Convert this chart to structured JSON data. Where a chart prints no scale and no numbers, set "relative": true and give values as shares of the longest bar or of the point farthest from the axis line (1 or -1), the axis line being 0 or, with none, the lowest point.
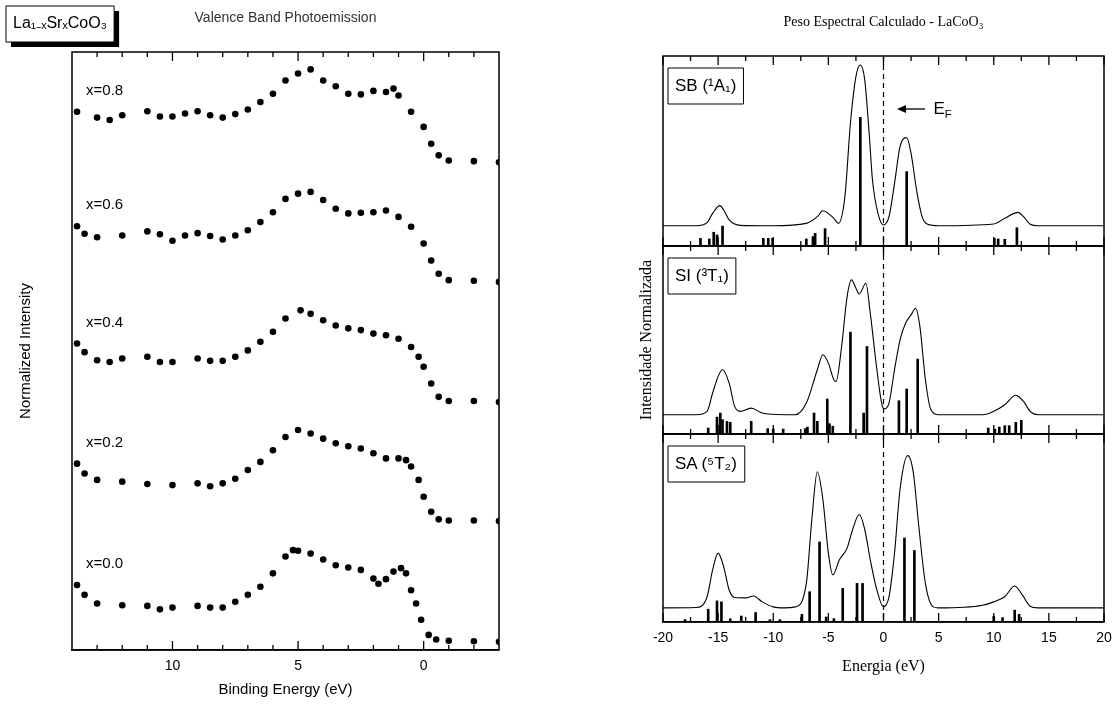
{
  "chart_data": [
    {
      "type": "scatter",
      "title": "Valence Band Photoemission",
      "xlabel": "Binding Energy (eV)",
      "ylabel": "Normalized Intensity",
      "relative": true,
      "marker": "circle",
      "annotations": [
        "La₁₋ₓSrₓCoO₃"
      ],
      "xlim": [
        14,
        -3
      ],
      "xticks": [
        {
          "value": 13,
          "label": null
        },
        {
          "value": 12,
          "label": null
        },
        {
          "value": 11,
          "label": null
        },
        10,
        {
          "value": 9,
          "label": null
        },
        {
          "value": 8,
          "label": null
        },
        {
          "value": 7,
          "label": null
        },
        {
          "value": 6,
          "label": null
        },
        5,
        {
          "value": 4,
          "label": null
        },
        {
          "value": 3,
          "label": null
        },
        {
          "value": 2,
          "label": null
        },
        {
          "value": 1,
          "label": null
        },
        0,
        {
          "value": -1,
          "label": null
        },
        {
          "value": -2,
          "label": null
        }
      ],
      "series": [
        {
          "name": "x=0.8",
          "color": "#000000",
          "x": [
            13.8,
            13,
            12.5,
            12,
            11,
            10.5,
            10,
            9.5,
            9,
            8.5,
            8,
            7.5,
            7,
            6.5,
            6,
            5.5,
            5,
            4.5,
            4,
            3.5,
            3,
            2.5,
            2,
            1.5,
            1.2,
            1,
            0.5,
            0,
            -0.3,
            -0.6,
            -1,
            -2,
            -3
          ],
          "values": [
            0.927,
            0.917,
            0.913,
            0.921,
            0.928,
            0.919,
            0.919,
            0.924,
            0.928,
            0.921,
            0.917,
            0.923,
            0.931,
            0.944,
            0.958,
            0.981,
            0.993,
            1,
            0.981,
            0.971,
            0.958,
            0.957,
            0.963,
            0.961,
            0.967,
            0.955,
            0.927,
            0.901,
            0.872,
            0.852,
            0.843,
            0.842,
            0.84
          ]
        },
        {
          "name": "x=0.6",
          "color": "#000000",
          "x": [
            13.8,
            13.5,
            13,
            12,
            11,
            10.5,
            10,
            9.5,
            9,
            8.5,
            8,
            7.5,
            7,
            6.5,
            6,
            5.5,
            5,
            4.5,
            4,
            3.5,
            3,
            2.5,
            2,
            1.5,
            1,
            0.5,
            0,
            -0.3,
            -0.6,
            -1,
            -2,
            -3
          ],
          "values": [
            0.73,
            0.717,
            0.711,
            0.714,
            0.721,
            0.716,
            0.705,
            0.714,
            0.718,
            0.713,
            0.707,
            0.714,
            0.723,
            0.737,
            0.754,
            0.777,
            0.786,
            0.789,
            0.775,
            0.76,
            0.752,
            0.753,
            0.754,
            0.757,
            0.746,
            0.729,
            0.7,
            0.671,
            0.648,
            0.637,
            0.636,
            0.634
          ]
        },
        {
          "name": "x=0.4",
          "color": "#000000",
          "x": [
            13.8,
            13.5,
            13,
            12.5,
            12,
            11,
            10.5,
            10,
            9,
            8.5,
            8,
            7.5,
            7,
            6.5,
            6,
            5.5,
            4.9,
            4.5,
            4,
            3.5,
            3,
            2.5,
            2,
            1.5,
            1,
            0.5,
            0.2,
            0,
            -0.3,
            -0.6,
            -1,
            -2,
            -3
          ],
          "values": [
            0.528,
            0.513,
            0.499,
            0.496,
            0.502,
            0.505,
            0.496,
            0.496,
            0.502,
            0.498,
            0.498,
            0.505,
            0.516,
            0.531,
            0.548,
            0.571,
            0.585,
            0.579,
            0.568,
            0.559,
            0.554,
            0.551,
            0.545,
            0.542,
            0.536,
            0.522,
            0.505,
            0.488,
            0.459,
            0.436,
            0.429,
            0.429,
            0.427
          ]
        },
        {
          "name": "x=0.2",
          "color": "#000000",
          "x": [
            13.8,
            13.5,
            13,
            12,
            11,
            10,
            9,
            8.5,
            8,
            7.5,
            7,
            6.5,
            6,
            5.5,
            5,
            4.5,
            4,
            3.5,
            3,
            2.5,
            2,
            1.5,
            1,
            0.7,
            0.5,
            0.2,
            0,
            -0.3,
            -0.6,
            -1,
            -2,
            -3
          ],
          "values": [
            0.321,
            0.304,
            0.293,
            0.29,
            0.286,
            0.284,
            0.287,
            0.282,
            0.287,
            0.295,
            0.31,
            0.324,
            0.344,
            0.367,
            0.379,
            0.373,
            0.364,
            0.356,
            0.351,
            0.347,
            0.339,
            0.33,
            0.33,
            0.327,
            0.316,
            0.293,
            0.264,
            0.238,
            0.225,
            0.223,
            0.223,
            0.222
          ]
        },
        {
          "name": "x=0.0",
          "color": "#000000",
          "x": [
            13.8,
            13.5,
            13,
            12,
            11,
            10.5,
            10,
            9,
            8.5,
            8,
            7.5,
            7,
            6.5,
            6,
            5.5,
            5.2,
            5,
            4.5,
            4,
            3.5,
            3,
            2.5,
            2,
            1.8,
            1.5,
            1.2,
            0.9,
            0.7,
            0.5,
            0.3,
            0.1,
            -0.2,
            -0.5,
            -1,
            -2,
            -3
          ],
          "values": [
            0.112,
            0.095,
            0.08,
            0.077,
            0.076,
            0.07,
            0.073,
            0.076,
            0.073,
            0.073,
            0.083,
            0.095,
            0.109,
            0.132,
            0.161,
            0.172,
            0.171,
            0.166,
            0.156,
            0.146,
            0.142,
            0.138,
            0.123,
            0.114,
            0.122,
            0.135,
            0.141,
            0.132,
            0.103,
            0.08,
            0.052,
            0.026,
            0.018,
            0.016,
            0.015,
            0.014
          ]
        }
      ]
    },
    {
      "type": "line",
      "title": "Peso Espectral Calculado - LaCoO₃",
      "relative": true,
      "marker": "none",
      "tick_labels": false,
      "annotations": [
        "SB (¹A₁)"
      ],
      "ref_lines": [
        {
          "axis": "x",
          "value": 0,
          "label": "E$_{F}$",
          "line_style": "dashed",
          "color": "#000000"
        }
      ],
      "xlim": [
        -20,
        20
      ],
      "xticks": [
        -20,
        {
          "value": -17.5,
          "label": null
        },
        -15,
        {
          "value": -12.5,
          "label": null
        },
        -10,
        {
          "value": -7.5,
          "label": null
        },
        -5,
        {
          "value": -2.5,
          "label": null
        },
        0,
        {
          "value": 2.5,
          "label": null
        },
        5,
        {
          "value": 7.5,
          "label": null
        },
        10,
        {
          "value": 12.5,
          "label": null
        },
        15,
        {
          "value": 17.5,
          "label": null
        },
        20
      ],
      "series": [
        {
          "type": "line",
          "color": "#000000",
          "x": [
            -20,
            -17,
            -16,
            -15.5,
            -14.85,
            -14.5,
            -14,
            -13,
            -10,
            -7,
            -6,
            -5.5,
            -4.5,
            -4.1,
            -3.5,
            -3,
            -2.5,
            -2.1,
            -1.7,
            -1.3,
            -1,
            -0.5,
            0,
            0.5,
            1,
            1.5,
            2.1,
            2.5,
            3,
            3.5,
            4,
            5,
            10,
            11,
            12.2,
            12.7,
            13.3,
            14,
            20
          ],
          "values": [
            0.112,
            0.112,
            0.129,
            0.18,
            0.223,
            0.199,
            0.144,
            0.114,
            0.112,
            0.125,
            0.162,
            0.195,
            0.153,
            0.125,
            0.273,
            0.678,
            0.936,
            1,
            0.917,
            0.622,
            0.365,
            0.18,
            0.116,
            0.162,
            0.346,
            0.549,
            0.599,
            0.512,
            0.309,
            0.162,
            0.12,
            0.112,
            0.122,
            0.153,
            0.186,
            0.162,
            0.12,
            0.112,
            0.112
          ]
        },
        {
          "type": "bar",
          "color": "#000000",
          "x": [
            -16.6,
            -15.8,
            -15.4,
            -15.1,
            -14.6,
            -10.9,
            -10.45,
            -10.06,
            -7,
            -6.4,
            -6.2,
            -5.3,
            -2.1,
            2.1,
            10.05,
            10.4,
            11,
            12.1
          ],
          "values": [
            0.042,
            0.039,
            0.076,
            0.061,
            0.11,
            0.042,
            0.042,
            0.042,
            0.039,
            0.052,
            0.07,
            0.096,
            0.711,
            0.411,
            0.042,
            0.039,
            0.037,
            0.101
          ]
        }
      ]
    },
    {
      "type": "line",
      "ylabel": "Intensidade Normalizada",
      "relative": true,
      "marker": "none",
      "tick_labels": false,
      "annotations": [
        "SI (³T₁)"
      ],
      "ref_lines": [
        {
          "axis": "x",
          "value": 0,
          "line_style": "dashed",
          "color": "#000000"
        }
      ],
      "xlim": [
        -20,
        20
      ],
      "xticks": [
        -20,
        {
          "value": -17.5,
          "label": null
        },
        -15,
        {
          "value": -12.5,
          "label": null
        },
        -10,
        {
          "value": -7.5,
          "label": null
        },
        -5,
        {
          "value": -2.5,
          "label": null
        },
        0,
        {
          "value": 2.5,
          "label": null
        },
        5,
        {
          "value": 7.5,
          "label": null
        },
        10,
        {
          "value": 12.5,
          "label": null
        },
        15,
        {
          "value": 17.5,
          "label": null
        },
        20
      ],
      "series": [
        {
          "type": "line",
          "color": "#000000",
          "x": [
            -20,
            -17,
            -16,
            -15.5,
            -15,
            -14.6,
            -14,
            -13.5,
            -13,
            -12,
            -11,
            -9,
            -8,
            -7,
            -6,
            -5.5,
            -5,
            -4.5,
            -4.3,
            -3.8,
            -3.3,
            -2.9,
            -2.5,
            -2.2,
            -1.6,
            -1.2,
            -0.6,
            -0.1,
            0.1,
            0.5,
            1,
            1.5,
            2,
            2.5,
            2.9,
            3.3,
            3.8,
            4.3,
            5,
            9,
            10,
            11,
            12,
            12.7,
            13.3,
            14,
            20
          ],
          "values": [
            0.125,
            0.125,
            0.147,
            0.266,
            0.374,
            0.417,
            0.33,
            0.179,
            0.147,
            0.168,
            0.136,
            0.125,
            0.125,
            0.201,
            0.417,
            0.514,
            0.46,
            0.352,
            0.341,
            0.568,
            0.892,
            1,
            0.946,
            0.909,
            0.978,
            0.784,
            0.417,
            0.179,
            0.164,
            0.201,
            0.417,
            0.611,
            0.719,
            0.773,
            0.816,
            0.698,
            0.352,
            0.158,
            0.125,
            0.125,
            0.147,
            0.19,
            0.251,
            0.212,
            0.147,
            0.125,
            0.125
          ]
        },
        {
          "type": "bar",
          "color": "#000000",
          "x": [
            -15.9,
            -15.1,
            -14.8,
            -14.6,
            -14.2,
            -13.9,
            -12,
            -10.5,
            -10,
            -9.1,
            -7.1,
            -6.9,
            -6.3,
            -6,
            -5.1,
            -4.9,
            -4.6,
            -3,
            -1.8,
            -1.5,
            1.4,
            2.1,
            3.1,
            9.5,
            10.1,
            10.5,
            11,
            11.4,
            12,
            12.5
          ],
          "values": [
            0.039,
            0.11,
            0.136,
            0.093,
            0.082,
            0.076,
            0.082,
            0.035,
            0.032,
            0.032,
            0.035,
            0.045,
            0.136,
            0.082,
            0.227,
            0.067,
            0.05,
            0.661,
            0.136,
            0.568,
            0.216,
            0.292,
            0.486,
            0.039,
            0.032,
            0.045,
            0.054,
            0.054,
            0.076,
            0.089
          ]
        }
      ]
    },
    {
      "type": "line",
      "xlabel": "Energia (eV)",
      "relative": true,
      "marker": "none",
      "annotations": [
        "SA (⁵T₂)"
      ],
      "ref_lines": [
        {
          "axis": "x",
          "value": 0,
          "line_style": "dashed",
          "color": "#000000"
        }
      ],
      "xlim": [
        -20,
        20
      ],
      "xticks": [
        -20,
        {
          "value": -17.5,
          "label": null
        },
        -15,
        {
          "value": -12.5,
          "label": null
        },
        -10,
        {
          "value": -7.5,
          "label": null
        },
        -5,
        {
          "value": -2.5,
          "label": null
        },
        0,
        {
          "value": 2.5,
          "label": null
        },
        5,
        {
          "value": 7.5,
          "label": null
        },
        10,
        {
          "value": 12.5,
          "label": null
        },
        15,
        {
          "value": 17.5,
          "label": null
        },
        20
      ],
      "series": [
        {
          "type": "line",
          "color": "#000000",
          "x": [
            -20,
            -17,
            -16,
            -15.5,
            -15,
            -14.5,
            -14,
            -13.5,
            -12.5,
            -11.8,
            -11,
            -10,
            -9,
            -8,
            -7,
            -6.5,
            -6,
            -5.5,
            -5,
            -4.6,
            -4,
            -3.3,
            -2.8,
            -2.2,
            -1.7,
            -1.2,
            -0.6,
            0,
            0.5,
            1,
            1.5,
            2.2,
            2.7,
            3.2,
            3.8,
            4.5,
            5,
            9,
            10,
            11,
            11.9,
            12.6,
            13.3,
            14,
            20
          ],
          "values": [
            0.085,
            0.087,
            0.152,
            0.313,
            0.414,
            0.333,
            0.192,
            0.147,
            0.145,
            0.156,
            0.121,
            0.091,
            0.085,
            0.091,
            0.232,
            0.616,
            0.903,
            0.737,
            0.414,
            0.283,
            0.374,
            0.444,
            0.556,
            0.646,
            0.556,
            0.374,
            0.192,
            0.091,
            0.152,
            0.414,
            0.798,
            1,
            0.899,
            0.576,
            0.232,
            0.091,
            0.085,
            0.101,
            0.121,
            0.152,
            0.216,
            0.162,
            0.095,
            0.085,
            0.085
          ]
        },
        {
          "type": "bar",
          "color": "#000000",
          "x": [
            -18,
            -15.9,
            -15.1,
            -14.7,
            -13.9,
            -12.9,
            -11.6,
            -10.3,
            -9.4,
            -7.4,
            -6.7,
            -5.8,
            -5.2,
            -4.5,
            -3.7,
            -2.4,
            -1.9,
            1.9,
            2.8,
            10,
            10.8,
            11.9,
            12.3
          ],
          "values": [
            0.014,
            0.077,
            0.127,
            0.121,
            0.02,
            0.036,
            0.057,
            0.014,
            0.014,
            0.046,
            0.182,
            0.481,
            0.03,
            0.02,
            0.202,
            0.232,
            0.232,
            0.505,
            0.43,
            0.034,
            0.026,
            0.071,
            0.046
          ]
        }
      ]
    }
  ]
}
